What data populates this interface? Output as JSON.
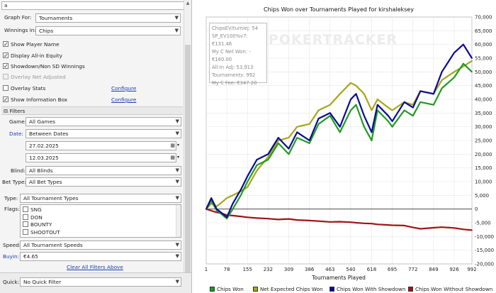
{
  "search": {
    "value": "a"
  },
  "graph": {
    "graph_for_label": "Graph For:",
    "graph_for_value": "Tournaments",
    "winnings_label": "Winnings in:",
    "winnings_value": "Chips"
  },
  "options": [
    {
      "label": "Show Player Name",
      "checked": true,
      "disabled": false
    },
    {
      "label": "Display All-in Equity",
      "checked": true,
      "disabled": false
    },
    {
      "label": "Showdown/Non SD Winnings",
      "checked": true,
      "disabled": false
    },
    {
      "label": "Overlay Net Adjusted",
      "checked": false,
      "disabled": true
    },
    {
      "label": "Overlay Stats",
      "checked": false,
      "disabled": false
    },
    {
      "label": "Show Information Box",
      "checked": true,
      "disabled": false
    }
  ],
  "configure_label": "Configure",
  "filters": {
    "header": "Filters",
    "game_label": "Game:",
    "game_value": "All Games",
    "date_label": "Date:",
    "date_value": "Between Dates",
    "date_from": "27.02.2025",
    "date_to": "12.03.2025",
    "blind_label": "Blind:",
    "blind_value": "All Blinds",
    "bettype_label": "Bet Type:",
    "bettype_value": "All Bet Types",
    "type_label": "Type:",
    "type_value": "All Tournament Types",
    "flags_label": "Flags:",
    "flags": [
      "SNG",
      "DON",
      "BOUNTY",
      "SHOOTOUT"
    ],
    "speed_label": "Speed:",
    "speed_value": "All Tournament Speeds",
    "buyin_label": "Buyin:",
    "buyin_value": "€4.65",
    "clear_label": "Clear All Filters Above"
  },
  "quick": {
    "label": "Quick:",
    "value": "No Quick Filter"
  },
  "info_box": [
    "ChipsEV/turniej: 54",
    "SP_EV100%v7: €131.46",
    "My C Net Won: -€160.00",
    "All-In Adj: 53,913",
    "Tournaments: 992",
    "My C Fee: €347.20"
  ],
  "watermark": "POKERTRACKER",
  "colors": {
    "chips_won": "#1e9c1e",
    "net_expected": "#a6a61a",
    "with_showdown": "#0a0a96",
    "without_showdown": "#a01414"
  },
  "chart_data": {
    "type": "line",
    "title": "Chips Won over Tournaments Played for kirshaleksey",
    "xlabel": "Tournaments Played",
    "ylabel": "",
    "xlim": [
      1,
      992
    ],
    "ylim": [
      -20000,
      70000
    ],
    "x_ticks": [
      1,
      78,
      155,
      232,
      309,
      386,
      463,
      540,
      618,
      695,
      772,
      849,
      926,
      992
    ],
    "y_ticks": [
      -20000,
      -15000,
      -10000,
      -5000,
      0,
      5000,
      10000,
      15000,
      20000,
      25000,
      30000,
      35000,
      40000,
      45000,
      50000,
      55000,
      60000,
      65000,
      70000
    ],
    "y_tick_labels": [
      "-20,000",
      "-15,000",
      "-10,000",
      "-5,000",
      "0",
      "5,000",
      "10,000",
      "15,000",
      "20,000",
      "25,000",
      "30,000",
      "35,000",
      "40,000",
      "45,000",
      "50,000",
      "55,000",
      "60,000",
      "65,000",
      "70,000"
    ],
    "grid": true,
    "legend_position": "bottom",
    "x": [
      1,
      20,
      40,
      60,
      78,
      100,
      130,
      155,
      190,
      232,
      270,
      309,
      340,
      386,
      420,
      463,
      500,
      540,
      560,
      590,
      618,
      640,
      680,
      695,
      740,
      772,
      800,
      849,
      880,
      926,
      960,
      992
    ],
    "series": [
      {
        "name": "Chips Won",
        "values": [
          0,
          3000,
          -500,
          -2000,
          -3500,
          0,
          5000,
          10000,
          16000,
          18000,
          24000,
          20000,
          26000,
          24000,
          31000,
          34000,
          28000,
          36000,
          38000,
          30000,
          25000,
          36000,
          32000,
          30000,
          36000,
          34000,
          39000,
          38000,
          44000,
          48000,
          53000,
          50000
        ]
      },
      {
        "name": "Net Expected Chips Won",
        "values": [
          0,
          2000,
          1000,
          2500,
          4000,
          5000,
          6500,
          8000,
          14000,
          19000,
          25000,
          26000,
          30000,
          31000,
          36000,
          38000,
          42000,
          46000,
          45000,
          42000,
          36000,
          40000,
          37000,
          36000,
          39000,
          38000,
          43000,
          42000,
          47000,
          50000,
          52000,
          54000
        ]
      },
      {
        "name": "Chips Won With Showdown",
        "values": [
          0,
          4000,
          0,
          -1500,
          -3000,
          2000,
          7000,
          12000,
          18000,
          20000,
          26000,
          22000,
          28000,
          25000,
          33000,
          35000,
          30000,
          40000,
          42000,
          34000,
          28000,
          38000,
          34000,
          32000,
          39000,
          37000,
          43000,
          42000,
          50000,
          57000,
          60000,
          55000
        ]
      },
      {
        "name": "Chips Won Without Showdown",
        "values": [
          0,
          -600,
          -1200,
          -1600,
          -2200,
          -2400,
          -2700,
          -3000,
          -3300,
          -3500,
          -3800,
          -3600,
          -4000,
          -4200,
          -4400,
          -4700,
          -4600,
          -4800,
          -5000,
          -5200,
          -5300,
          -5600,
          -5800,
          -5900,
          -6000,
          -6700,
          -7200,
          -6800,
          -6600,
          -6900,
          -7400,
          -7700
        ]
      }
    ]
  }
}
